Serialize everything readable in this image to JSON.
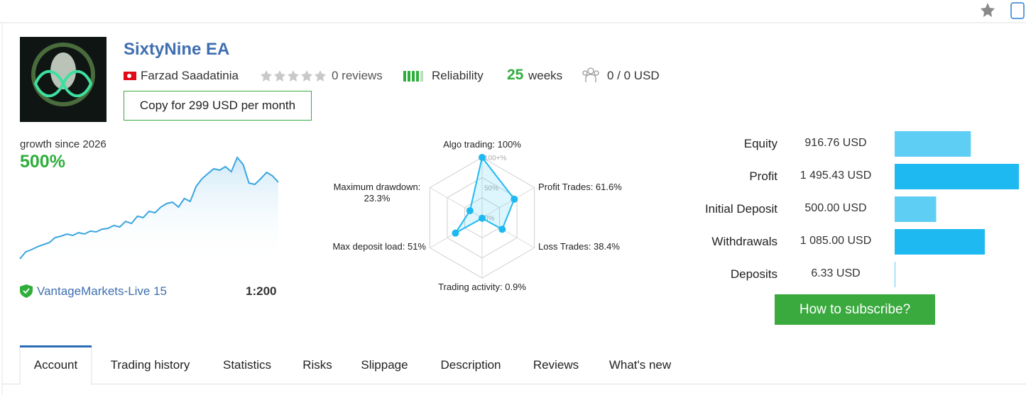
{
  "header": {
    "title": "SixtyNine EA",
    "author": "Farzad Saadatinia",
    "reviews": "0 reviews",
    "reliability": "Reliability",
    "weeks_number": "25",
    "weeks_label": "weeks",
    "subscribers": "0 / 0 USD",
    "copy_button": "Copy for 299 USD per month"
  },
  "growth": {
    "label": "growth since 2026",
    "value": "500%",
    "broker": "VantageMarkets-Live 15",
    "leverage": "1:200",
    "values": [
      0,
      46,
      60,
      79,
      93,
      106,
      139,
      148,
      162,
      153,
      171,
      162,
      181,
      176,
      194,
      199,
      218,
      208,
      245,
      231,
      278,
      269,
      310,
      301,
      338,
      361,
      370,
      338,
      394,
      375,
      472,
      523,
      556,
      588,
      579,
      602,
      569,
      662,
      616,
      495,
      486,
      523,
      565,
      542,
      500
    ]
  },
  "radar": {
    "axes": [
      {
        "label": "Algo trading: 100%",
        "value": 100
      },
      {
        "label": "Profit Trades: 61.6%",
        "value": 61.6
      },
      {
        "label": "Loss Trades: 38.4%",
        "value": 38.4
      },
      {
        "label": "Trading activity: 0.9%",
        "value": 0.9
      },
      {
        "label": "Max deposit load: 51%",
        "value": 51
      },
      {
        "label": "Maximum drawdown: 23.3%",
        "value": 23.3
      }
    ],
    "scale_labels": [
      "100+%",
      "50%",
      "0%"
    ]
  },
  "balances": {
    "rows": [
      {
        "label": "Equity",
        "value_label": "916.76 USD",
        "value": 916.76,
        "color": "#5fcef5"
      },
      {
        "label": "Profit",
        "value_label": "1 495.43 USD",
        "value": 1495.43,
        "color": "#1eb9f0"
      },
      {
        "label": "Initial Deposit",
        "value_label": "500.00 USD",
        "value": 500,
        "color": "#5fcef5"
      },
      {
        "label": "Withdrawals",
        "value_label": "1 085.00 USD",
        "value": 1085,
        "color": "#1eb9f0"
      },
      {
        "label": "Deposits",
        "value_label": "6.33 USD",
        "value": 6.33,
        "color": "#5fcef5"
      }
    ],
    "button": "How to subscribe?"
  },
  "tabs": [
    "Account",
    "Trading history",
    "Statistics",
    "Risks",
    "Slippage",
    "Description",
    "Reviews",
    "What's new"
  ]
}
